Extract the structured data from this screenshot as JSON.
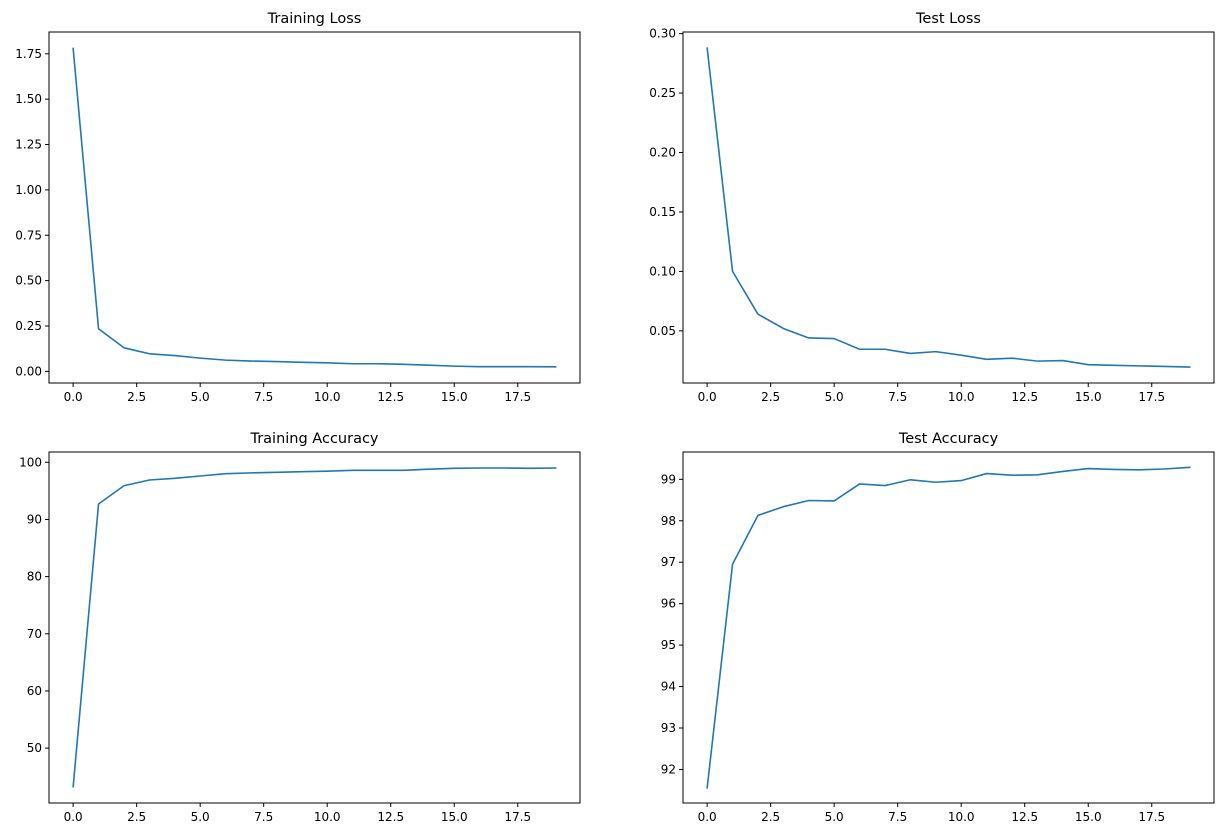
{
  "series_color": "#1f77b4",
  "chart_data": [
    {
      "type": "line",
      "title": "Training Loss",
      "xlabel": "",
      "ylabel": "",
      "x": [
        0,
        1,
        2,
        3,
        4,
        5,
        6,
        7,
        8,
        9,
        10,
        11,
        12,
        13,
        14,
        15,
        16,
        17,
        18,
        19
      ],
      "series": [
        {
          "values": [
            1.78,
            0.235,
            0.13,
            0.097,
            0.087,
            0.073,
            0.062,
            0.057,
            0.054,
            0.05,
            0.047,
            0.042,
            0.042,
            0.039,
            0.034,
            0.029,
            0.026,
            0.026,
            0.026,
            0.025
          ]
        }
      ],
      "xlim": [
        -0.95,
        19.95
      ],
      "ylim": [
        -0.064,
        1.87
      ],
      "xticks": [
        0,
        2.5,
        5,
        7.5,
        10,
        12.5,
        15,
        17.5
      ],
      "xtick_labels": [
        "0.0",
        "2.5",
        "5.0",
        "7.5",
        "10.0",
        "12.5",
        "15.0",
        "17.5"
      ],
      "yticks": [
        0,
        0.25,
        0.5,
        0.75,
        1.0,
        1.25,
        1.5,
        1.75
      ],
      "ytick_labels": [
        "0.00",
        "0.25",
        "0.50",
        "0.75",
        "1.00",
        "1.25",
        "1.50",
        "1.75"
      ],
      "grid": false
    },
    {
      "type": "line",
      "title": "Test Loss",
      "xlabel": "",
      "ylabel": "",
      "x": [
        0,
        1,
        2,
        3,
        4,
        5,
        6,
        7,
        8,
        9,
        10,
        11,
        12,
        13,
        14,
        15,
        16,
        17,
        18,
        19
      ],
      "series": [
        {
          "values": [
            0.288,
            0.1,
            0.064,
            0.052,
            0.044,
            0.0435,
            0.0345,
            0.0345,
            0.031,
            0.0325,
            0.0295,
            0.026,
            0.027,
            0.0245,
            0.025,
            0.0215,
            0.021,
            0.0205,
            0.02,
            0.0195
          ]
        }
      ],
      "xlim": [
        -0.95,
        19.95
      ],
      "ylim": [
        0.0061,
        0.3014
      ],
      "xticks": [
        0,
        2.5,
        5,
        7.5,
        10,
        12.5,
        15,
        17.5
      ],
      "xtick_labels": [
        "0.0",
        "2.5",
        "5.0",
        "7.5",
        "10.0",
        "12.5",
        "15.0",
        "17.5"
      ],
      "yticks": [
        0.05,
        0.1,
        0.15,
        0.2,
        0.25,
        0.3
      ],
      "ytick_labels": [
        "0.05",
        "0.10",
        "0.15",
        "0.20",
        "0.25",
        "0.30"
      ],
      "grid": false
    },
    {
      "type": "line",
      "title": "Training Accuracy",
      "xlabel": "",
      "ylabel": "",
      "x": [
        0,
        1,
        2,
        3,
        4,
        5,
        6,
        7,
        8,
        9,
        10,
        11,
        12,
        13,
        14,
        15,
        16,
        17,
        18,
        19
      ],
      "series": [
        {
          "values": [
            43.2,
            92.7,
            95.9,
            96.9,
            97.2,
            97.6,
            98.0,
            98.15,
            98.25,
            98.35,
            98.45,
            98.6,
            98.6,
            98.6,
            98.8,
            98.95,
            99.0,
            99.0,
            98.95,
            99.0
          ]
        }
      ],
      "xlim": [
        -0.95,
        19.95
      ],
      "ylim": [
        40.4,
        101.8
      ],
      "xticks": [
        0,
        2.5,
        5,
        7.5,
        10,
        12.5,
        15,
        17.5
      ],
      "xtick_labels": [
        "0.0",
        "2.5",
        "5.0",
        "7.5",
        "10.0",
        "12.5",
        "15.0",
        "17.5"
      ],
      "yticks": [
        50,
        60,
        70,
        80,
        90,
        100
      ],
      "ytick_labels": [
        "50",
        "60",
        "70",
        "80",
        "90",
        "100"
      ],
      "grid": false
    },
    {
      "type": "line",
      "title": "Test Accuracy",
      "xlabel": "",
      "ylabel": "",
      "x": [
        0,
        1,
        2,
        3,
        4,
        5,
        6,
        7,
        8,
        9,
        10,
        11,
        12,
        13,
        14,
        15,
        16,
        17,
        18,
        19
      ],
      "series": [
        {
          "values": [
            91.55,
            96.95,
            98.13,
            98.34,
            98.49,
            98.48,
            98.89,
            98.85,
            98.99,
            98.93,
            98.97,
            99.14,
            99.1,
            99.11,
            99.19,
            99.26,
            99.24,
            99.23,
            99.25,
            99.29
          ]
        }
      ],
      "xlim": [
        -0.95,
        19.95
      ],
      "ylim": [
        91.19,
        99.66
      ],
      "xticks": [
        0,
        2.5,
        5,
        7.5,
        10,
        12.5,
        15,
        17.5
      ],
      "xtick_labels": [
        "0.0",
        "2.5",
        "5.0",
        "7.5",
        "10.0",
        "12.5",
        "15.0",
        "17.5"
      ],
      "yticks": [
        92,
        93,
        94,
        95,
        96,
        97,
        98,
        99
      ],
      "ytick_labels": [
        "92",
        "93",
        "94",
        "95",
        "96",
        "97",
        "98",
        "99"
      ],
      "grid": false
    }
  ]
}
